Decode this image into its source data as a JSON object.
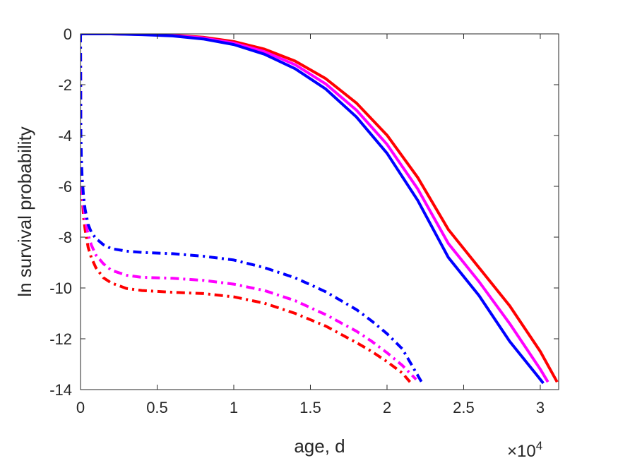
{
  "chart_data": {
    "type": "line",
    "title": "",
    "xlabel": "age, d",
    "ylabel": "ln survival probability",
    "x_exponent_label": {
      "base": "×10",
      "exp": "4"
    },
    "xlim": [
      0,
      31200
    ],
    "ylim": [
      -14,
      0
    ],
    "xticks": [
      0,
      5000,
      10000,
      15000,
      20000,
      25000,
      30000
    ],
    "xtick_labels": [
      "0",
      "0.5",
      "1",
      "1.5",
      "2",
      "2.5",
      "3"
    ],
    "yticks": [
      0,
      -2,
      -4,
      -6,
      -8,
      -10,
      -12,
      -14
    ],
    "ytick_labels": [
      "0",
      "-2",
      "-4",
      "-6",
      "-8",
      "-10",
      "-12",
      "-14"
    ],
    "grid": false,
    "legend": "none",
    "series": [
      {
        "color": "#ff0000",
        "style": "solid",
        "x": [
          0,
          10,
          50,
          100,
          1000,
          2000,
          4000,
          6000,
          8000,
          10000,
          12000,
          14000,
          16000,
          18000,
          20000,
          22000,
          24000,
          26000,
          28000,
          30000,
          31100
        ],
        "y": [
          0,
          -0.02,
          -0.01,
          0,
          0,
          0,
          -0.02,
          -0.05,
          -0.13,
          -0.3,
          -0.6,
          -1.07,
          -1.76,
          -2.72,
          -3.99,
          -5.65,
          -7.7,
          -9.2,
          -10.7,
          -12.5,
          -13.7
        ]
      },
      {
        "color": "#ff00ff",
        "style": "solid",
        "x": [
          0,
          10,
          50,
          100,
          1000,
          2000,
          4000,
          6000,
          8000,
          10000,
          12000,
          14000,
          16000,
          18000,
          20000,
          22000,
          24000,
          26000,
          28000,
          30000,
          30500
        ],
        "y": [
          0,
          -0.02,
          -0.01,
          0,
          0,
          0,
          -0.02,
          -0.06,
          -0.16,
          -0.36,
          -0.7,
          -1.21,
          -1.97,
          -3.0,
          -4.35,
          -6.1,
          -8.25,
          -9.75,
          -11.4,
          -13.2,
          -13.7
        ]
      },
      {
        "color": "#0000ff",
        "style": "solid",
        "x": [
          0,
          10,
          50,
          100,
          1000,
          2000,
          4000,
          6000,
          8000,
          10000,
          12000,
          14000,
          16000,
          18000,
          20000,
          22000,
          24000,
          26000,
          28000,
          30000,
          30200
        ],
        "y": [
          0,
          -0.02,
          -0.01,
          0,
          0,
          0,
          -0.03,
          -0.08,
          -0.2,
          -0.42,
          -0.8,
          -1.37,
          -2.17,
          -3.27,
          -4.7,
          -6.55,
          -8.8,
          -10.3,
          -12.1,
          -13.6,
          -13.75
        ]
      },
      {
        "color": "#ff0000",
        "style": "dashdot",
        "x": [
          0,
          20,
          50,
          100,
          200,
          300,
          500,
          700,
          1000,
          1500,
          2000,
          3000,
          4000,
          6000,
          8000,
          10000,
          12000,
          14000,
          16000,
          18000,
          19000,
          20000,
          21000,
          21500
        ],
        "y": [
          0,
          -4.5,
          -5.5,
          -6.3,
          -7.2,
          -7.7,
          -8.4,
          -8.8,
          -9.2,
          -9.6,
          -9.8,
          -10.02,
          -10.1,
          -10.17,
          -10.22,
          -10.35,
          -10.6,
          -11.0,
          -11.5,
          -12.15,
          -12.5,
          -12.9,
          -13.35,
          -13.7
        ]
      },
      {
        "color": "#ff00ff",
        "style": "dashdot",
        "x": [
          0,
          20,
          50,
          100,
          200,
          300,
          500,
          700,
          1000,
          1500,
          2000,
          3000,
          4000,
          6000,
          8000,
          10000,
          12000,
          14000,
          16000,
          18000,
          19000,
          20000,
          21000,
          21900
        ],
        "y": [
          0,
          -4.2,
          -5.2,
          -6.0,
          -6.8,
          -7.3,
          -7.9,
          -8.3,
          -8.7,
          -9.05,
          -9.3,
          -9.5,
          -9.58,
          -9.62,
          -9.7,
          -9.85,
          -10.1,
          -10.5,
          -11.05,
          -11.7,
          -12.1,
          -12.55,
          -13.05,
          -13.6
        ]
      },
      {
        "color": "#0000ff",
        "style": "dashdot",
        "x": [
          0,
          20,
          50,
          100,
          200,
          300,
          500,
          700,
          1000,
          1500,
          2000,
          3000,
          4000,
          6000,
          8000,
          10000,
          12000,
          14000,
          16000,
          18000,
          19000,
          20000,
          21000,
          22300
        ],
        "y": [
          0,
          -3.8,
          -4.8,
          -5.6,
          -6.4,
          -6.9,
          -7.5,
          -7.8,
          -8.05,
          -8.3,
          -8.45,
          -8.55,
          -8.6,
          -8.65,
          -8.75,
          -8.9,
          -9.2,
          -9.6,
          -10.15,
          -10.85,
          -11.3,
          -11.8,
          -12.4,
          -13.75
        ]
      }
    ]
  }
}
